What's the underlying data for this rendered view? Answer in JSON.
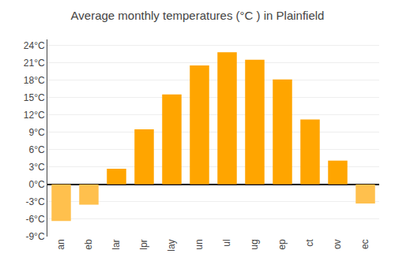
{
  "chart_data": {
    "type": "bar",
    "title": "Average monthly temperatures (°C ) in Plainfield",
    "categories": [
      "an",
      "eb",
      "lar",
      "lpr",
      "lay",
      "un",
      "ul",
      "ug",
      "ep",
      "ct",
      "ov",
      "ec"
    ],
    "values": [
      -6.3,
      -3.5,
      2.7,
      9.5,
      15.5,
      20.5,
      22.8,
      21.5,
      18.1,
      11.2,
      4.1,
      -3.3
    ],
    "colors": [
      "#FFC04D",
      "#FFC04D",
      "#FFA500",
      "#FFA500",
      "#FFA500",
      "#FFA500",
      "#FFA500",
      "#FFA500",
      "#FFA500",
      "#FFA500",
      "#FFA500",
      "#FFC04D"
    ],
    "ylim": [
      -9,
      25
    ],
    "yticks": [
      {
        "value": -9,
        "label": "-9°C"
      },
      {
        "value": -6,
        "label": "-6°C"
      },
      {
        "value": -3,
        "label": "-3°C"
      },
      {
        "value": 0,
        "label": "0°C"
      },
      {
        "value": 3,
        "label": "3°C"
      },
      {
        "value": 6,
        "label": "6°C"
      },
      {
        "value": 9,
        "label": "9°C"
      },
      {
        "value": 12,
        "label": "12°C"
      },
      {
        "value": 15,
        "label": "15°C"
      },
      {
        "value": 18,
        "label": "18°C"
      },
      {
        "value": 21,
        "label": "21°C"
      },
      {
        "value": 24,
        "label": "24°C"
      }
    ],
    "grid": true
  }
}
